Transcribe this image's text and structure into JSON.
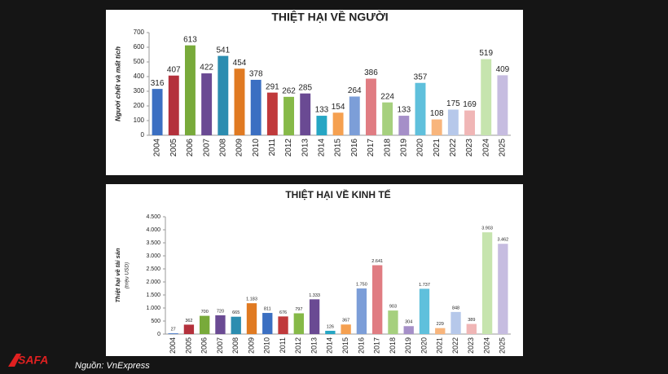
{
  "chart_data": [
    {
      "type": "bar",
      "title": "THIỆT HẠI VỀ NGƯỜI",
      "y_label": "Người chết và mất tích",
      "categories": [
        "2004",
        "2005",
        "2006",
        "2007",
        "2008",
        "2009",
        "2010",
        "2011",
        "2012",
        "2013",
        "2014",
        "2015",
        "2016",
        "2017",
        "2018",
        "2019",
        "2020",
        "2021",
        "2022",
        "2023",
        "2024",
        "2025"
      ],
      "values": [
        316,
        407,
        613,
        422,
        541,
        454,
        378,
        291,
        262,
        285,
        133,
        154,
        264,
        386,
        224,
        133,
        357,
        108,
        175,
        169,
        519,
        409
      ],
      "colors": [
        "#3b6fc2",
        "#b4313c",
        "#78aa3a",
        "#6a4a93",
        "#2c8db0",
        "#e07a22",
        "#3b6fc2",
        "#c0393b",
        "#86b948",
        "#6a4a93",
        "#26a6c4",
        "#f5a050",
        "#7c9ed8",
        "#e07c82",
        "#a6d07e",
        "#a58fc8",
        "#5fc0dc",
        "#f8b57c",
        "#b6c8ea",
        "#f0b6b6",
        "#c6e4ae",
        "#c6bce0"
      ],
      "ylim": [
        0,
        700
      ],
      "yticks": [
        0,
        100,
        200,
        300,
        400,
        500,
        600,
        700
      ],
      "grid": false
    },
    {
      "type": "bar",
      "title": "THIỆT HẠI VỀ KINH TẾ",
      "y_label": "Thiệt hại về tài sản",
      "y_sublabel": "(triệu USD)",
      "categories": [
        "2004",
        "2005",
        "2006",
        "2007",
        "2008",
        "2009",
        "2010",
        "2011",
        "2012",
        "2013",
        "2014",
        "2015",
        "2016",
        "2017",
        "2018",
        "2019",
        "2020",
        "2021",
        "2022",
        "2023",
        "2024",
        "2025"
      ],
      "values": [
        27,
        362,
        700,
        720,
        665,
        1183,
        811,
        676,
        797,
        1333,
        126,
        367,
        1750,
        2641,
        903,
        304,
        1737,
        229,
        848,
        389,
        3903,
        3462
      ],
      "value_labels": [
        "27",
        "362",
        "700",
        "720",
        "665",
        "1.183",
        "811",
        "676",
        "797",
        "1.333",
        "126",
        "367",
        "1.750",
        "2.641",
        "903",
        "304",
        "1.737",
        "229",
        "848",
        "389",
        "3.903",
        "3.462"
      ],
      "colors": [
        "#3b6fc2",
        "#b4313c",
        "#78aa3a",
        "#6a4a93",
        "#2c8db0",
        "#e07a22",
        "#3b6fc2",
        "#c0393b",
        "#86b948",
        "#6a4a93",
        "#26a6c4",
        "#f5a050",
        "#7c9ed8",
        "#e07c82",
        "#a6d07e",
        "#a58fc8",
        "#5fc0dc",
        "#f8b57c",
        "#b6c8ea",
        "#f0b6b6",
        "#c6e4ae",
        "#c6bce0"
      ],
      "ylim": [
        0,
        4500
      ],
      "yticks": [
        0,
        500,
        {
          "value": 1000,
          "label": "1.000"
        },
        {
          "value": 1500,
          "label": "1.500"
        },
        {
          "value": 2000,
          "label": "2.000"
        },
        {
          "value": 2500,
          "label": "2.500"
        },
        {
          "value": 3000,
          "label": "3.000"
        },
        {
          "value": 3500,
          "label": "3.500"
        },
        {
          "value": 4000,
          "label": "4.000"
        },
        {
          "value": 4500,
          "label": "4.500"
        }
      ],
      "grid": false
    }
  ],
  "footer": {
    "logo": "SAFA",
    "source": "Nguồn: VnExpress"
  }
}
